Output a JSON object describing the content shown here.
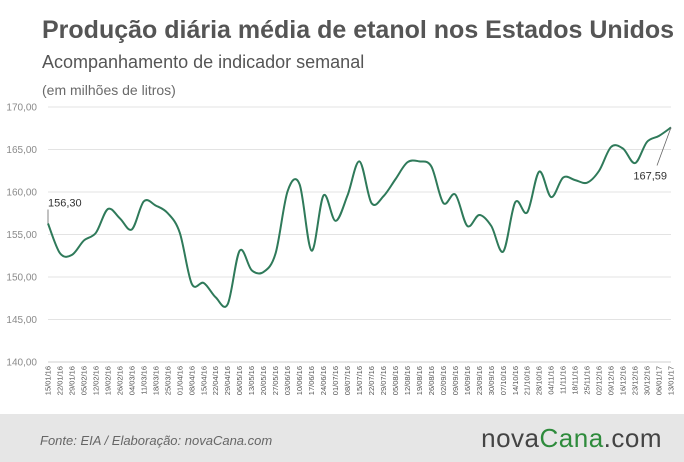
{
  "header": {
    "title": "Produção diária média de etanol nos Estados Unidos",
    "subtitle": "Acompanhamento de indicador semanal",
    "unit_note": "(em milhões de litros)"
  },
  "footer": {
    "source": "Fonte:  EIA / Elaboração:  novaCana.com",
    "brand_main": "nova",
    "brand_accent": "Cana",
    "brand_suffix": ".com"
  },
  "colors": {
    "line": "#2f7a5a",
    "grid": "#e3e3e3",
    "footer_bg": "#e6e6e6",
    "brand_accent": "#2e8b3c"
  },
  "chart_data": {
    "type": "line",
    "title": "Produção diária média de etanol nos Estados Unidos",
    "subtitle": "Acompanhamento de indicador semanal",
    "ylabel": "(em milhões de litros)",
    "ylim": [
      140,
      170
    ],
    "yticks": [
      "140,00",
      "145,00",
      "150,00",
      "155,00",
      "160,00",
      "165,00",
      "170,00"
    ],
    "grid": true,
    "categories": [
      "15/01/16",
      "22/01/16",
      "29/01/16",
      "05/02/16",
      "12/02/16",
      "19/02/16",
      "26/02/16",
      "04/03/16",
      "11/03/16",
      "18/03/16",
      "25/03/16",
      "01/04/16",
      "08/04/16",
      "15/04/16",
      "22/04/16",
      "29/04/16",
      "06/05/16",
      "13/05/16",
      "20/05/16",
      "27/05/16",
      "03/06/16",
      "10/06/16",
      "17/06/16",
      "24/06/16",
      "01/07/16",
      "08/07/16",
      "15/07/16",
      "22/07/16",
      "29/07/16",
      "05/08/16",
      "12/08/16",
      "19/08/16",
      "26/08/16",
      "02/09/16",
      "09/09/16",
      "16/09/16",
      "23/09/16",
      "30/09/16",
      "07/10/16",
      "14/10/16",
      "21/10/16",
      "28/10/16",
      "04/11/16",
      "11/11/16",
      "18/11/16",
      "25/11/16",
      "02/12/16",
      "09/12/16",
      "16/12/16",
      "23/12/16",
      "30/12/16",
      "06/01/17",
      "13/01/17"
    ],
    "values": [
      156.3,
      152.8,
      152.6,
      154.3,
      155.2,
      158.0,
      156.9,
      155.6,
      158.9,
      158.4,
      157.5,
      155.2,
      149.2,
      149.3,
      147.6,
      146.8,
      153.1,
      150.8,
      150.6,
      152.8,
      160.1,
      160.9,
      153.1,
      159.6,
      156.6,
      159.6,
      163.6,
      158.7,
      159.5,
      161.5,
      163.5,
      163.6,
      163.0,
      158.7,
      159.7,
      156.0,
      157.3,
      156.0,
      153.0,
      158.8,
      157.6,
      162.4,
      159.4,
      161.7,
      161.4,
      161.1,
      162.5,
      165.3,
      165.1,
      163.4,
      165.9,
      166.6,
      167.59
    ],
    "annotations": [
      {
        "label": "156,30",
        "category": "15/01/16"
      },
      {
        "label": "167,59",
        "category": "13/01/17"
      }
    ]
  }
}
